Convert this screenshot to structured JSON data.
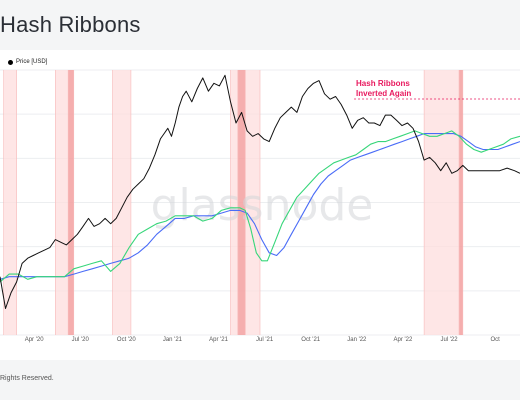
{
  "page": {
    "title": "Hash Ribbons",
    "footer": "Rights Reserved."
  },
  "chart_data": {
    "type": "line",
    "title": "Hash Ribbons",
    "legend": {
      "placement": "top-left",
      "entries": [
        "Price [USD]"
      ]
    },
    "watermark": "glassnode",
    "x_ticks": [
      "Apr '20",
      "Jul '20",
      "Oct '20",
      "Jan '21",
      "Apr '21",
      "Jul '21",
      "Oct '21",
      "Jan '22",
      "Apr '22",
      "Jul '22",
      "Oct"
    ],
    "x_range": [
      2020.13,
      2022.95
    ],
    "y_range": [
      0,
      100
    ],
    "grid": "horizontal",
    "colors": {
      "price": "#111111",
      "sma_30": "#37d67a",
      "sma_60": "#4a6cf7",
      "capitulation_fill": "#fddede",
      "capitulation_strong": "#f3a0a0",
      "annotation": "#e8195e"
    },
    "capitulation_periods": [
      {
        "start": 2020.15,
        "end": 2020.22,
        "strong": false
      },
      {
        "start": 2020.43,
        "end": 2020.5,
        "strong": false
      },
      {
        "start": 2020.5,
        "end": 2020.53,
        "strong": true
      },
      {
        "start": 2020.74,
        "end": 2020.84,
        "strong": false
      },
      {
        "start": 2021.38,
        "end": 2021.42,
        "strong": false
      },
      {
        "start": 2021.42,
        "end": 2021.46,
        "strong": true
      },
      {
        "start": 2021.46,
        "end": 2021.54,
        "strong": false
      },
      {
        "start": 2022.43,
        "end": 2022.62,
        "strong": false
      },
      {
        "start": 2022.62,
        "end": 2022.64,
        "strong": true
      }
    ],
    "annotation": {
      "text": [
        "Hash Ribbons",
        "Inverted Again"
      ],
      "x": 2022.05
    },
    "series": [
      {
        "name": "Price [USD]",
        "key": "price",
        "x": [
          2020.13,
          2020.16,
          2020.19,
          2020.22,
          2020.25,
          2020.28,
          2020.31,
          2020.34,
          2020.37,
          2020.4,
          2020.43,
          2020.46,
          2020.49,
          2020.52,
          2020.55,
          2020.58,
          2020.61,
          2020.64,
          2020.67,
          2020.7,
          2020.73,
          2020.76,
          2020.79,
          2020.82,
          2020.85,
          2020.88,
          2020.91,
          2020.94,
          2020.97,
          2021.0,
          2021.02,
          2021.04,
          2021.06,
          2021.08,
          2021.1,
          2021.12,
          2021.14,
          2021.17,
          2021.2,
          2021.23,
          2021.26,
          2021.29,
          2021.32,
          2021.35,
          2021.38,
          2021.41,
          2021.44,
          2021.47,
          2021.5,
          2021.53,
          2021.56,
          2021.59,
          2021.62,
          2021.65,
          2021.68,
          2021.71,
          2021.74,
          2021.77,
          2021.8,
          2021.83,
          2021.86,
          2021.89,
          2021.92,
          2021.95,
          2021.98,
          2022.01,
          2022.04,
          2022.07,
          2022.1,
          2022.13,
          2022.16,
          2022.19,
          2022.22,
          2022.25,
          2022.28,
          2022.31,
          2022.34,
          2022.37,
          2022.4,
          2022.43,
          2022.46,
          2022.49,
          2022.52,
          2022.55,
          2022.58,
          2022.61,
          2022.64,
          2022.67,
          2022.7,
          2022.73,
          2022.76,
          2022.8,
          2022.84,
          2022.88,
          2022.92,
          2022.95
        ],
        "values": [
          22,
          10,
          16,
          20,
          27,
          29,
          30,
          31,
          32,
          33,
          36,
          35,
          34,
          36,
          38,
          41,
          44,
          41,
          42,
          44,
          42,
          44,
          48,
          52,
          55,
          57,
          59,
          63,
          68,
          74,
          76,
          78,
          75,
          80,
          86,
          90,
          92,
          88,
          93,
          97,
          92,
          95,
          94,
          98,
          88,
          80,
          84,
          77,
          75,
          76,
          74,
          73,
          78,
          82,
          84,
          86,
          84,
          90,
          93,
          95,
          96,
          91,
          89,
          90,
          87,
          83,
          78,
          81,
          82,
          80,
          80,
          79,
          83,
          83,
          81,
          79,
          80,
          78,
          73,
          66,
          67,
          65,
          62,
          65,
          61,
          62,
          64,
          62,
          62,
          62,
          62,
          62,
          62,
          63,
          62,
          61
        ],
        "estimated": true
      },
      {
        "name": "",
        "key": "sma_30",
        "x": [
          2020.13,
          2020.18,
          2020.23,
          2020.28,
          2020.33,
          2020.38,
          2020.43,
          2020.48,
          2020.53,
          2020.58,
          2020.63,
          2020.68,
          2020.73,
          2020.78,
          2020.83,
          2020.88,
          2020.93,
          2020.98,
          2021.03,
          2021.08,
          2021.13,
          2021.18,
          2021.23,
          2021.28,
          2021.33,
          2021.38,
          2021.43,
          2021.46,
          2021.49,
          2021.52,
          2021.55,
          2021.58,
          2021.62,
          2021.66,
          2021.7,
          2021.74,
          2021.78,
          2021.82,
          2021.86,
          2021.9,
          2021.94,
          2021.98,
          2022.02,
          2022.06,
          2022.1,
          2022.14,
          2022.18,
          2022.22,
          2022.26,
          2022.3,
          2022.34,
          2022.38,
          2022.42,
          2022.46,
          2022.5,
          2022.54,
          2022.58,
          2022.62,
          2022.66,
          2022.7,
          2022.74,
          2022.78,
          2022.82,
          2022.86,
          2022.9,
          2022.95
        ],
        "values": [
          20,
          23,
          23,
          21,
          22,
          22,
          22,
          22,
          25,
          26,
          27,
          28,
          24,
          27,
          33,
          38,
          40,
          42,
          43,
          45,
          45,
          45,
          43,
          44,
          47,
          48,
          48,
          47,
          40,
          31,
          28,
          28,
          35,
          42,
          47,
          52,
          55,
          58,
          61,
          63,
          65,
          66,
          67,
          68,
          70,
          72,
          73,
          73,
          74,
          75,
          76,
          77,
          76,
          75,
          75,
          76,
          77,
          75,
          72,
          70,
          69,
          70,
          71,
          72,
          74,
          75
        ],
        "estimated": true
      },
      {
        "name": "",
        "key": "sma_60",
        "x": [
          2020.13,
          2020.18,
          2020.23,
          2020.28,
          2020.33,
          2020.38,
          2020.43,
          2020.48,
          2020.53,
          2020.58,
          2020.63,
          2020.68,
          2020.73,
          2020.78,
          2020.83,
          2020.88,
          2020.93,
          2020.98,
          2021.03,
          2021.08,
          2021.13,
          2021.18,
          2021.23,
          2021.28,
          2021.33,
          2021.38,
          2021.43,
          2021.47,
          2021.51,
          2021.55,
          2021.59,
          2021.63,
          2021.67,
          2021.71,
          2021.75,
          2021.79,
          2021.83,
          2021.87,
          2021.91,
          2021.95,
          2021.99,
          2022.03,
          2022.07,
          2022.11,
          2022.15,
          2022.19,
          2022.23,
          2022.27,
          2022.31,
          2022.35,
          2022.39,
          2022.43,
          2022.47,
          2022.51,
          2022.55,
          2022.59,
          2022.63,
          2022.67,
          2022.71,
          2022.75,
          2022.79,
          2022.83,
          2022.87,
          2022.91,
          2022.95
        ],
        "values": [
          21,
          22,
          22,
          22,
          22,
          22,
          22,
          22,
          23,
          24,
          25,
          26,
          27,
          28,
          29,
          31,
          34,
          38,
          41,
          44,
          44,
          45,
          45,
          45,
          46,
          47,
          47,
          46,
          42,
          36,
          31,
          30,
          33,
          38,
          43,
          48,
          53,
          57,
          60,
          62,
          64,
          66,
          67,
          68,
          69,
          70,
          71,
          72,
          73,
          74,
          75,
          76,
          76,
          76,
          76,
          76,
          75,
          73,
          71,
          70,
          70,
          70,
          71,
          72,
          73
        ],
        "estimated": true
      }
    ]
  }
}
